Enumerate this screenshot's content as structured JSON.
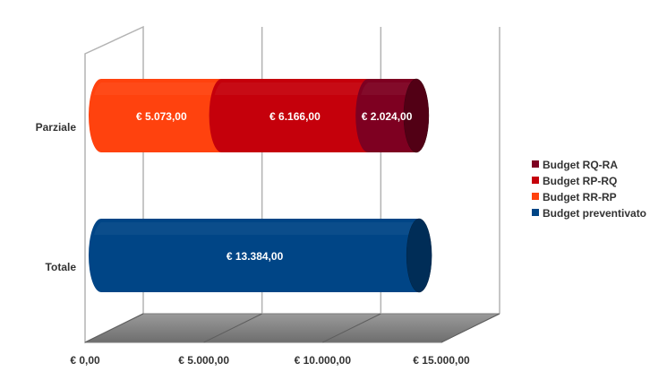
{
  "chart_data": {
    "type": "bar",
    "orientation": "horizontal",
    "stacked": true,
    "style": "3d-cylinder",
    "categories": [
      "Parziale",
      "Totale"
    ],
    "series": [
      {
        "name": "Budget preventivato",
        "values": [
          0,
          13384.0
        ],
        "labels": [
          "",
          "€ 13.384,00"
        ],
        "color": "#004586"
      },
      {
        "name": "Budget RR-RP",
        "values": [
          5073.0,
          0
        ],
        "labels": [
          "€ 5.073,00",
          ""
        ],
        "color": "#ff420e"
      },
      {
        "name": "Budget RP-RQ",
        "values": [
          6166.0,
          0
        ],
        "labels": [
          "€ 6.166,00",
          ""
        ],
        "color": "#c5000b"
      },
      {
        "name": "Budget RQ-RA",
        "values": [
          2024.0,
          0
        ],
        "labels": [
          "€ 2.024,00",
          ""
        ],
        "color": "#7e0021"
      }
    ],
    "legend_order": [
      "Budget RQ-RA",
      "Budget RP-RQ",
      "Budget RR-RP",
      "Budget preventivato"
    ],
    "x_ticks": [
      0,
      5000,
      10000,
      15000
    ],
    "x_tick_labels": [
      "€ 0,00",
      "€ 5.000,00",
      "€ 10.000,00",
      "€ 15.000,00"
    ],
    "xlim": [
      0,
      15000
    ],
    "title": "",
    "xlabel": "",
    "ylabel": "",
    "grid": true,
    "legend_position": "right"
  }
}
